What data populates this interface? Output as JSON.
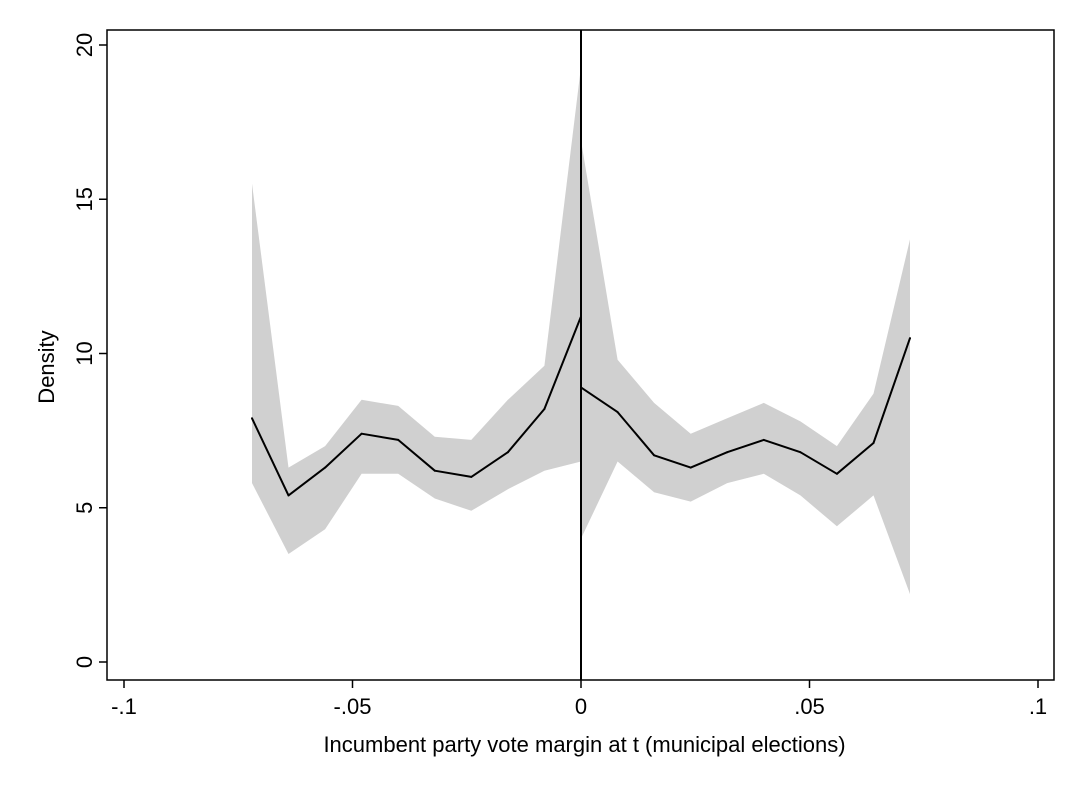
{
  "chart_data": {
    "type": "line",
    "title": "",
    "xlabel": "Incumbent party vote margin at t (municipal elections)",
    "ylabel": "Density",
    "xlim": [
      -0.1,
      0.1
    ],
    "ylim": [
      0,
      20
    ],
    "x_ticks": [
      -0.1,
      -0.05,
      0,
      0.05,
      0.1
    ],
    "x_tick_labels": [
      "-.1",
      "-.05",
      "0",
      ".05",
      ".1"
    ],
    "y_ticks": [
      0,
      5,
      10,
      15,
      20
    ],
    "y_tick_labels": [
      "0",
      "5",
      "10",
      "15",
      "20"
    ],
    "grid": false,
    "legend": "none",
    "cutoff_x": 0,
    "colors": {
      "line": "#000000",
      "band": "#d0d0d0",
      "axis": "#000000"
    },
    "series": [
      {
        "side": "left",
        "x": [
          -0.072,
          -0.064,
          -0.056,
          -0.048,
          -0.04,
          -0.032,
          -0.024,
          -0.016,
          -0.008,
          0.0
        ],
        "y": [
          7.9,
          5.4,
          6.3,
          7.4,
          7.2,
          6.2,
          6.0,
          6.8,
          8.2,
          11.2
        ],
        "lower": [
          5.8,
          3.5,
          4.3,
          6.1,
          6.1,
          5.3,
          4.9,
          5.6,
          6.2,
          6.5
        ],
        "upper": [
          15.5,
          6.3,
          7.0,
          8.5,
          8.3,
          7.3,
          7.2,
          8.5,
          9.6,
          19.3
        ]
      },
      {
        "side": "right",
        "x": [
          0.0,
          0.008,
          0.016,
          0.024,
          0.032,
          0.04,
          0.048,
          0.056,
          0.064,
          0.072
        ],
        "y": [
          8.9,
          8.1,
          6.7,
          6.3,
          6.8,
          7.2,
          6.8,
          6.1,
          7.1,
          10.5
        ],
        "lower": [
          4.0,
          6.5,
          5.5,
          5.2,
          5.8,
          6.1,
          5.4,
          4.4,
          5.4,
          2.2
        ],
        "upper": [
          16.9,
          9.8,
          8.4,
          7.4,
          7.9,
          8.4,
          7.8,
          7.0,
          8.7,
          13.7
        ]
      }
    ]
  }
}
